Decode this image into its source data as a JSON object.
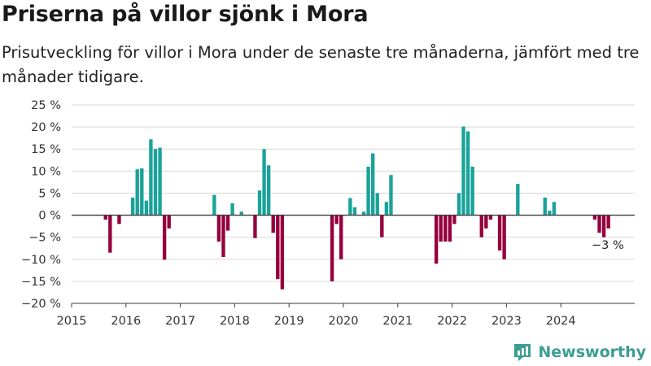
{
  "title": "Priserna på villor sjönk i Mora",
  "subtitle": "Prisutveckling för villor i Mora under de senaste tre månaderna, jämfört med tre månader tidigare.",
  "brand": {
    "name": "Newsworthy",
    "logo_icon": "bar-chart-logo-icon",
    "color": "#3b9e92"
  },
  "chart_data": {
    "type": "bar",
    "title": "Priserna på villor sjönk i Mora",
    "xlabel": "",
    "ylabel": "",
    "x_ticks": [
      "2015",
      "2016",
      "2017",
      "2018",
      "2019",
      "2020",
      "2021",
      "2022",
      "2023",
      "2024"
    ],
    "y_ticks": [
      "25 %",
      "20 %",
      "15 %",
      "10 %",
      "5 %",
      "0 %",
      "−5 %",
      "−10 %",
      "−15 %",
      "−20 %"
    ],
    "ylim": [
      -20,
      25
    ],
    "unit": "%",
    "grid": "horizontal",
    "positive_color": "#19a39a",
    "negative_color": "#96003d",
    "annotation": {
      "label": "−3 %",
      "date": "2024-11"
    },
    "series": [
      {
        "values": [
          [
            "2015-08",
            -1
          ],
          [
            "2015-09",
            -8.5
          ],
          [
            "2015-11",
            -2
          ],
          [
            "2016-02",
            4
          ],
          [
            "2016-03",
            10.4
          ],
          [
            "2016-04",
            10.6
          ],
          [
            "2016-05",
            3.3
          ],
          [
            "2016-06",
            17.2
          ],
          [
            "2016-07",
            15
          ],
          [
            "2016-08",
            15.3
          ],
          [
            "2016-09",
            -10.1
          ],
          [
            "2016-10",
            -3
          ],
          [
            "2017-08",
            4.6
          ],
          [
            "2017-09",
            -6
          ],
          [
            "2017-10",
            -9.5
          ],
          [
            "2017-11",
            -3.5
          ],
          [
            "2017-12",
            2.7
          ],
          [
            "2018-02",
            0.8
          ],
          [
            "2018-05",
            -5.2
          ],
          [
            "2018-06",
            5.6
          ],
          [
            "2018-07",
            15
          ],
          [
            "2018-08",
            11.3
          ],
          [
            "2018-09",
            -4
          ],
          [
            "2018-10",
            -14.5
          ],
          [
            "2018-11",
            -16.8
          ],
          [
            "2019-10",
            -15
          ],
          [
            "2019-11",
            -2
          ],
          [
            "2019-12",
            -10
          ],
          [
            "2020-02",
            3.9
          ],
          [
            "2020-03",
            1.8
          ],
          [
            "2020-05",
            0.8
          ],
          [
            "2020-06",
            11
          ],
          [
            "2020-07",
            14
          ],
          [
            "2020-08",
            5
          ],
          [
            "2020-09",
            -5
          ],
          [
            "2020-10",
            3
          ],
          [
            "2020-11",
            9.1
          ],
          [
            "2021-09",
            -11
          ],
          [
            "2021-10",
            -6
          ],
          [
            "2021-11",
            -6
          ],
          [
            "2021-12",
            -6
          ],
          [
            "2022-01",
            -2
          ],
          [
            "2022-02",
            5
          ],
          [
            "2022-03",
            20.1
          ],
          [
            "2022-04",
            19
          ],
          [
            "2022-05",
            11
          ],
          [
            "2022-07",
            -5
          ],
          [
            "2022-08",
            -3
          ],
          [
            "2022-09",
            -1
          ],
          [
            "2022-11",
            -8
          ],
          [
            "2022-12",
            -10
          ],
          [
            "2023-03",
            7.1
          ],
          [
            "2023-09",
            4
          ],
          [
            "2023-10",
            1
          ],
          [
            "2023-11",
            3
          ],
          [
            "2024-08",
            -1
          ],
          [
            "2024-09",
            -4
          ],
          [
            "2024-10",
            -5
          ],
          [
            "2024-11",
            -3
          ]
        ]
      }
    ]
  }
}
